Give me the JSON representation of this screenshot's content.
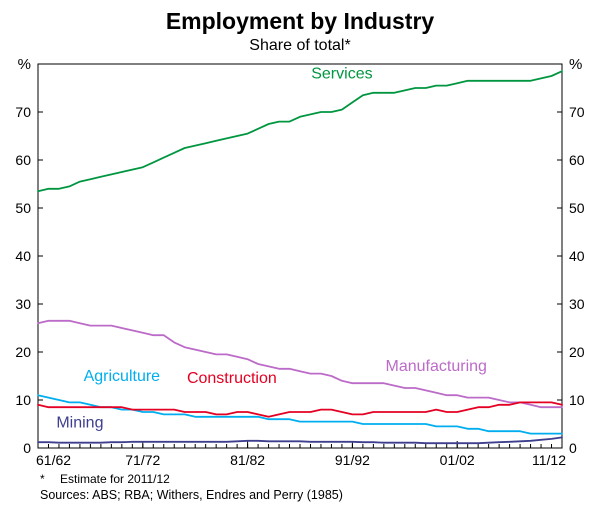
{
  "title": "Employment by Industry",
  "subtitle": "Share of total*",
  "footnote": {
    "marker": "*",
    "text": "Estimate for 2011/12"
  },
  "sources": "Sources: ABS; RBA; Withers, Endres and Perry (1985)",
  "chart_data": {
    "type": "line",
    "title": "Employment by Industry",
    "subtitle": "Share of total*",
    "ylabel_left": "%",
    "ylabel_right": "%",
    "ylim": [
      0,
      80
    ],
    "yticks": [
      0,
      10,
      20,
      30,
      40,
      50,
      60,
      70
    ],
    "grid": false,
    "x_axis_note": "annual financial years from 61/62 to 11/12, minor tick each year",
    "xticks": [
      {
        "pos": 0,
        "label": "61/62"
      },
      {
        "pos": 10,
        "label": "71/72"
      },
      {
        "pos": 20,
        "label": "81/82"
      },
      {
        "pos": 30,
        "label": "91/92"
      },
      {
        "pos": 40,
        "label": "01/02"
      },
      {
        "pos": 50,
        "label": "11/12"
      }
    ],
    "series": [
      {
        "name": "Services",
        "color": "#009640",
        "values": [
          53.5,
          54,
          54,
          54.5,
          55.5,
          56,
          56.5,
          57,
          57.5,
          58,
          58.5,
          59.5,
          60.5,
          61.5,
          62.5,
          63,
          63.5,
          64,
          64.5,
          65,
          65.5,
          66.5,
          67.5,
          68,
          68,
          69,
          69.5,
          70,
          70,
          70.5,
          72,
          73.5,
          74,
          74,
          74,
          74.5,
          75,
          75,
          75.5,
          75.5,
          76,
          76.5,
          76.5,
          76.5,
          76.5,
          76.5,
          76.5,
          76.5,
          77,
          77.5,
          78.5
        ]
      },
      {
        "name": "Manufacturing",
        "color": "#BC6BC8",
        "values": [
          26,
          26.5,
          26.5,
          26.5,
          26,
          25.5,
          25.5,
          25.5,
          25,
          24.5,
          24,
          23.5,
          23.5,
          22,
          21,
          20.5,
          20,
          19.5,
          19.5,
          19,
          18.5,
          17.5,
          17,
          16.5,
          16.5,
          16,
          15.5,
          15.5,
          15,
          14,
          13.5,
          13.5,
          13.5,
          13.5,
          13,
          12.5,
          12.5,
          12,
          11.5,
          11,
          11,
          10.5,
          10.5,
          10.5,
          10,
          9.5,
          9.5,
          9,
          8.5,
          8.5,
          8.5
        ]
      },
      {
        "name": "Agriculture",
        "color": "#00AEEF",
        "values": [
          11,
          10.5,
          10,
          9.5,
          9.5,
          9,
          8.5,
          8.5,
          8,
          8,
          7.5,
          7.5,
          7,
          7,
          7,
          6.5,
          6.5,
          6.5,
          6.5,
          6.5,
          6.5,
          6.5,
          6,
          6,
          6,
          5.5,
          5.5,
          5.5,
          5.5,
          5.5,
          5.5,
          5,
          5,
          5,
          5,
          5,
          5,
          5,
          4.5,
          4.5,
          4.5,
          4,
          4,
          3.5,
          3.5,
          3.5,
          3.5,
          3,
          3,
          3,
          3
        ]
      },
      {
        "name": "Construction",
        "color": "#E30022",
        "values": [
          9,
          8.5,
          8.5,
          8.5,
          8.5,
          8.5,
          8.5,
          8.5,
          8.5,
          8,
          8,
          8,
          8,
          8,
          7.5,
          7.5,
          7.5,
          7,
          7,
          7.5,
          7.5,
          7,
          6.5,
          7,
          7.5,
          7.5,
          7.5,
          8,
          8,
          7.5,
          7,
          7,
          7.5,
          7.5,
          7.5,
          7.5,
          7.5,
          7.5,
          8,
          7.5,
          7.5,
          8,
          8.5,
          8.5,
          9,
          9,
          9.5,
          9.5,
          9.5,
          9.5,
          9
        ]
      },
      {
        "name": "Mining",
        "color": "#3E3E8F",
        "values": [
          1.2,
          1.2,
          1.1,
          1.1,
          1.1,
          1.1,
          1.1,
          1.2,
          1.2,
          1.3,
          1.3,
          1.3,
          1.3,
          1.3,
          1.3,
          1.3,
          1.3,
          1.3,
          1.3,
          1.4,
          1.5,
          1.5,
          1.4,
          1.4,
          1.4,
          1.4,
          1.3,
          1.3,
          1.3,
          1.3,
          1.3,
          1.2,
          1.2,
          1.1,
          1.1,
          1.1,
          1.1,
          1,
          1,
          1,
          1,
          1,
          1,
          1.1,
          1.2,
          1.3,
          1.4,
          1.5,
          1.7,
          1.9,
          2.2
        ]
      }
    ],
    "labels": [
      {
        "text": "Services",
        "color": "#009640",
        "x": 29,
        "y": 77
      },
      {
        "text": "Agriculture",
        "color": "#00AEEF",
        "x": 8,
        "y": 14
      },
      {
        "text": "Construction",
        "color": "#E30022",
        "x": 18.5,
        "y": 13.5
      },
      {
        "text": "Manufacturing",
        "color": "#BC6BC8",
        "x": 38,
        "y": 16
      },
      {
        "text": "Mining",
        "color": "#3E3E8F",
        "x": 4,
        "y": 4.3
      }
    ],
    "legend_position": "inline-labels"
  }
}
